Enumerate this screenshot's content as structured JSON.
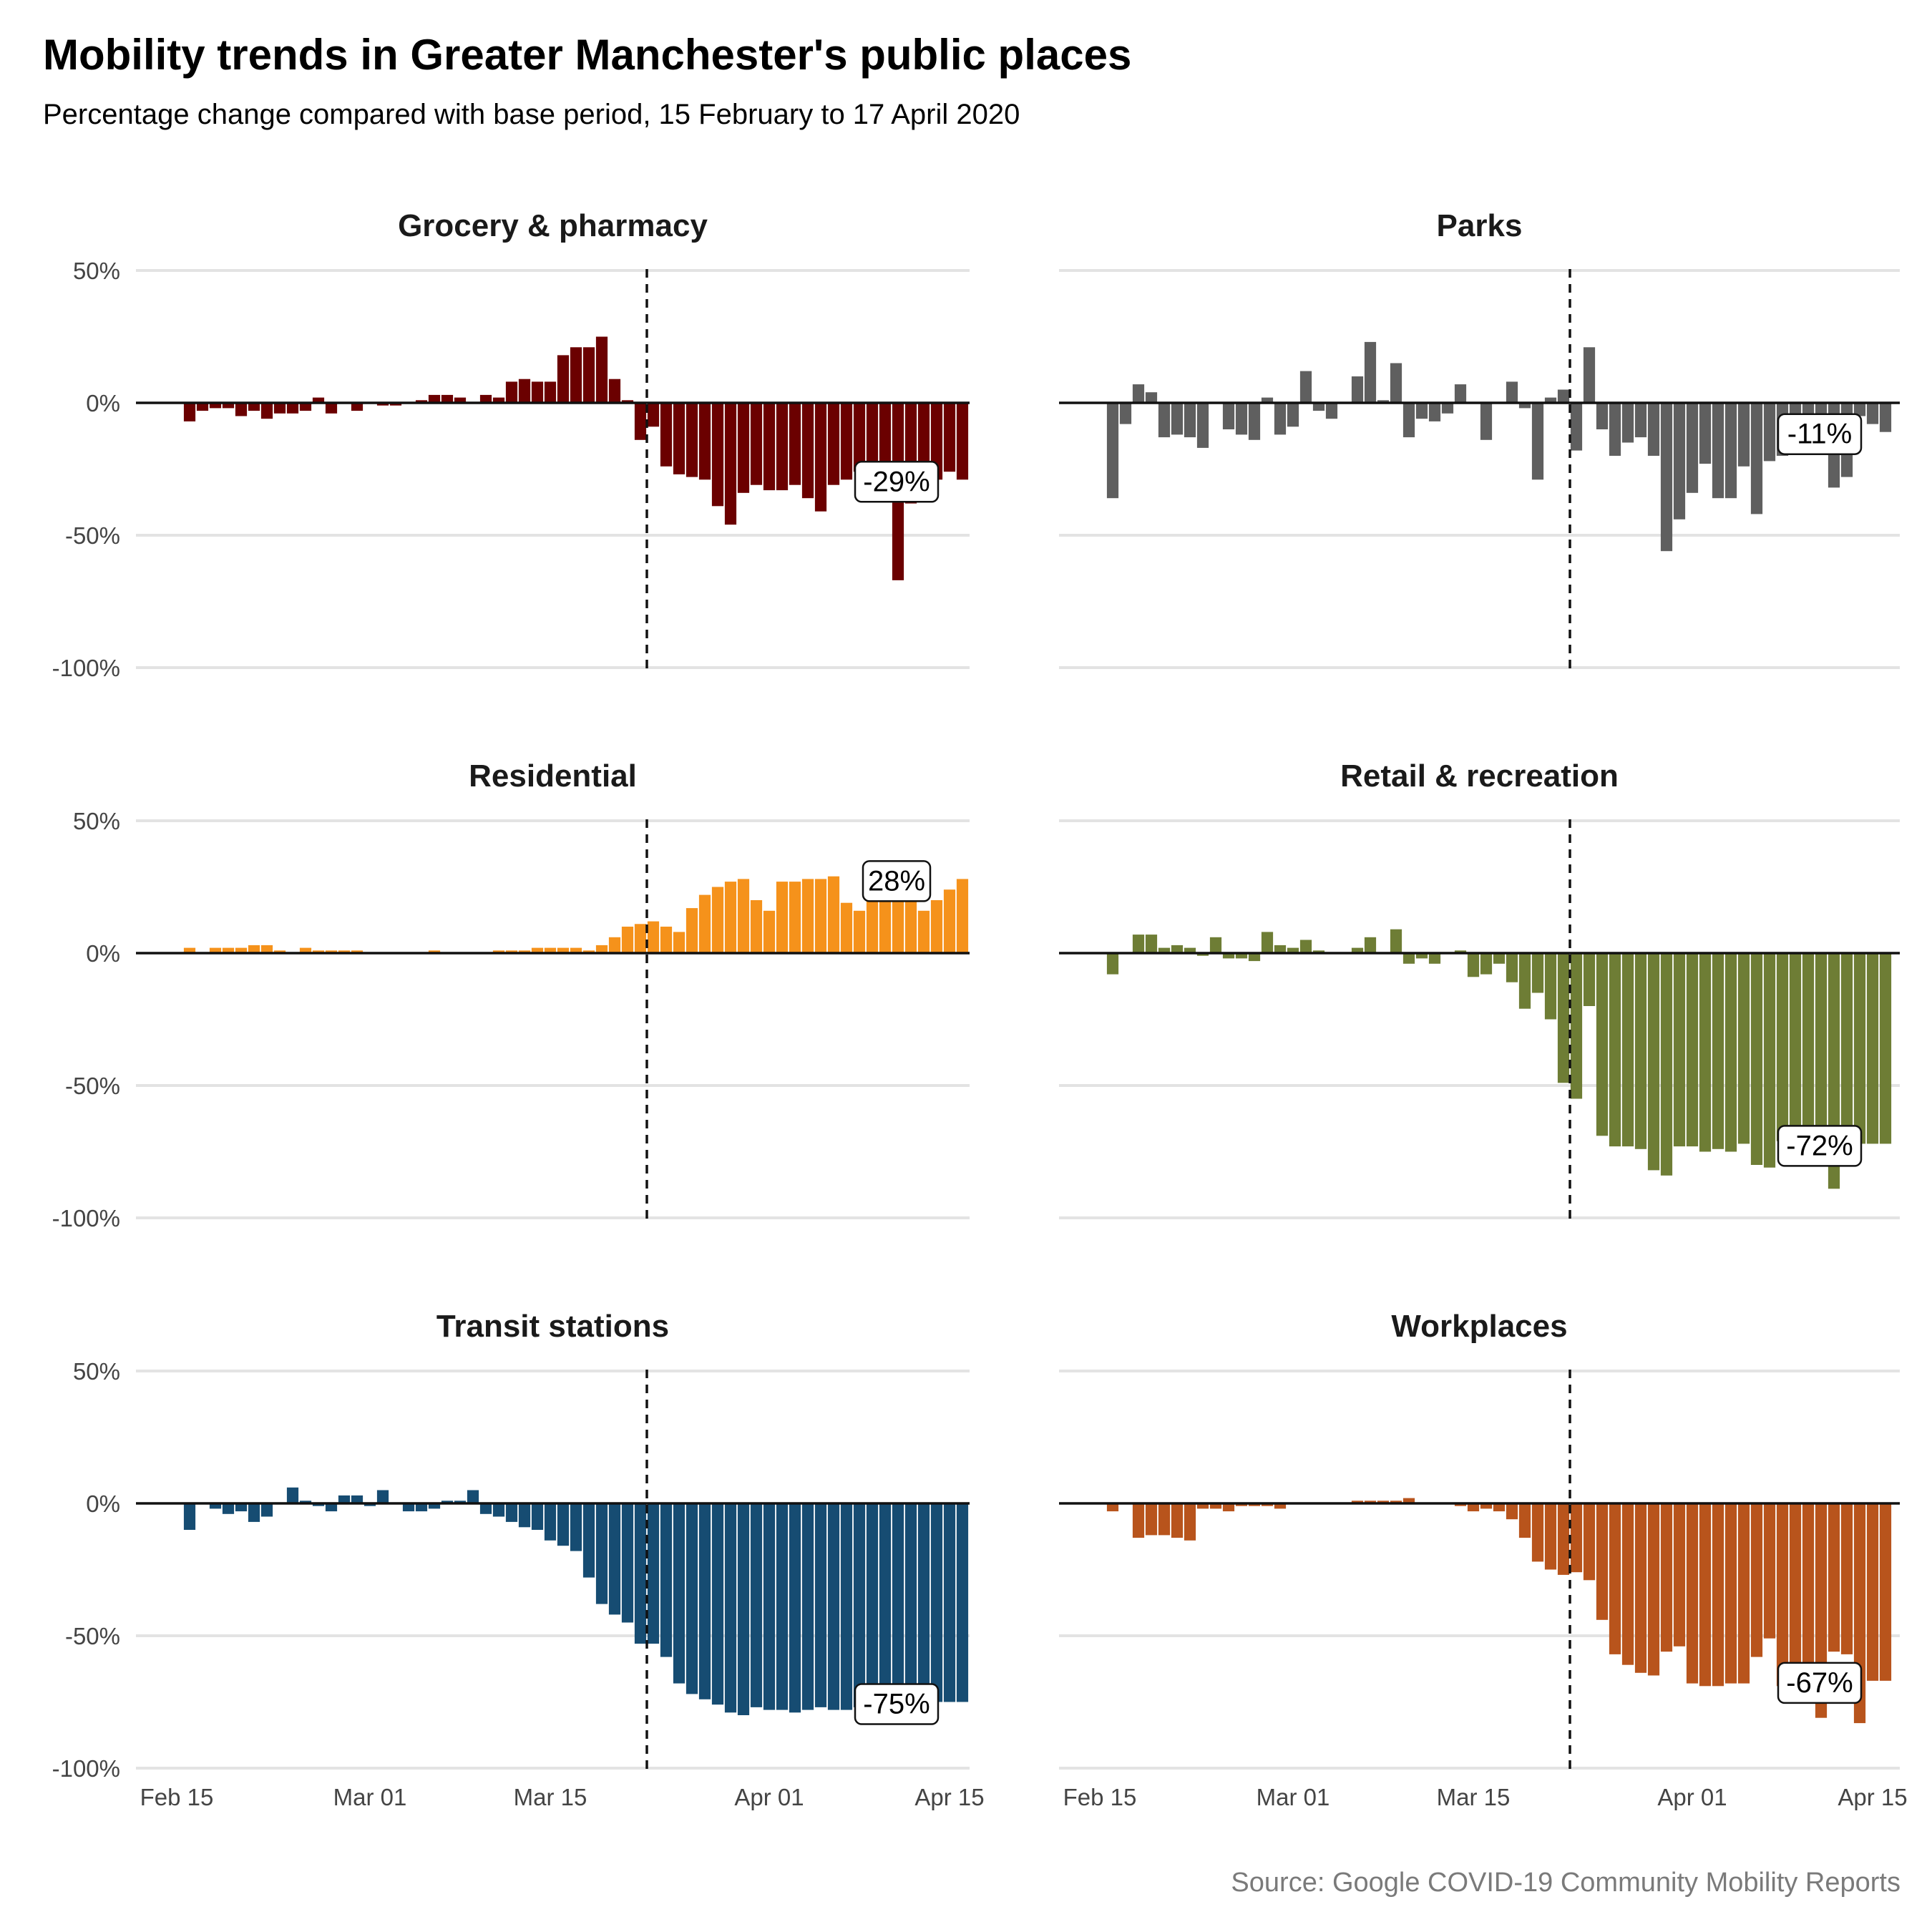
{
  "header": {
    "title": "Mobility trends in Greater Manchester's public places",
    "subtitle": "Percentage change compared with base period, 15 February to 17 April 2020",
    "caption": "Source: Google COVID-19 Community Mobility Reports"
  },
  "chart_data": [
    {
      "type": "bar",
      "title": "Grocery & pharmacy",
      "color": "#6b0000",
      "x_start": "2020-02-15",
      "x_end": "2020-04-17",
      "x_ticks": [
        "Feb 15",
        "Mar 01",
        "Mar 15",
        "Apr 01",
        "Apr 15"
      ],
      "y_ticks": [
        "50%",
        "0%",
        "-50%",
        "-100%"
      ],
      "ylim": [
        -100,
        50
      ],
      "vline_date": "2020-03-23",
      "values": [
        0,
        -7,
        -3,
        -2,
        -2,
        -5,
        -3,
        -6,
        -4,
        -4,
        -3,
        2,
        -4,
        0,
        -3,
        0,
        -1,
        -1,
        0,
        1,
        3,
        3,
        2,
        0,
        3,
        2,
        8,
        9,
        8,
        8,
        18,
        21,
        21,
        25,
        9,
        1,
        -14,
        -9,
        -24,
        -27,
        -28,
        -29,
        -39,
        -46,
        -34,
        -31,
        -33,
        -33,
        -31,
        -36,
        -41,
        -31,
        -29,
        -26,
        -30,
        -29,
        -67,
        -38,
        -30,
        -29,
        -26,
        -29
      ],
      "end_label": "-29%"
    },
    {
      "type": "bar",
      "title": "Parks",
      "color": "#5f5f5f",
      "x_start": "2020-02-15",
      "x_end": "2020-04-17",
      "x_ticks": [
        "Feb 15",
        "Mar 01",
        "Mar 15",
        "Apr 01",
        "Apr 15"
      ],
      "y_ticks": [
        "50%",
        "0%",
        "-50%",
        "-100%"
      ],
      "ylim": [
        -100,
        50
      ],
      "vline_date": "2020-03-23",
      "values": [
        0,
        -36,
        -8,
        7,
        4,
        -13,
        -12,
        -13,
        -17,
        0,
        -10,
        -12,
        -14,
        2,
        -12,
        -9,
        12,
        -3,
        -6,
        0,
        10,
        23,
        1,
        15,
        -13,
        -6,
        -7,
        -4,
        7,
        0,
        -14,
        0,
        8,
        -2,
        -29,
        2,
        5,
        -18,
        21,
        -10,
        -20,
        -15,
        -13,
        -20,
        -56,
        -44,
        -34,
        -23,
        -36,
        -36,
        -24,
        -42,
        -22,
        -20,
        -8,
        -6,
        -11,
        -32,
        -28,
        -5,
        -8,
        -11
      ],
      "end_label": "-11%"
    },
    {
      "type": "bar",
      "title": "Residential",
      "color": "#f5921b",
      "x_start": "2020-02-15",
      "x_end": "2020-04-17",
      "x_ticks": [
        "Feb 15",
        "Mar 01",
        "Mar 15",
        "Apr 01",
        "Apr 15"
      ],
      "y_ticks": [
        "50%",
        "0%",
        "-50%",
        "-100%"
      ],
      "ylim": [
        -100,
        50
      ],
      "vline_date": "2020-03-23",
      "values": [
        0,
        2,
        0,
        2,
        2,
        2,
        3,
        3,
        1,
        0,
        2,
        1,
        1,
        1,
        1,
        0,
        0,
        0,
        0,
        0,
        1,
        0,
        0,
        0,
        0,
        1,
        1,
        1,
        2,
        2,
        2,
        2,
        1,
        3,
        6,
        10,
        11,
        12,
        10,
        8,
        17,
        22,
        25,
        27,
        28,
        20,
        16,
        27,
        27,
        28,
        28,
        29,
        19,
        16,
        26,
        26,
        27,
        26,
        16,
        20,
        24,
        28
      ],
      "end_label": "28%"
    },
    {
      "type": "bar",
      "title": "Retail & recreation",
      "color": "#6e7d35",
      "x_start": "2020-02-15",
      "x_end": "2020-04-17",
      "x_ticks": [
        "Feb 15",
        "Mar 01",
        "Mar 15",
        "Apr 01",
        "Apr 15"
      ],
      "y_ticks": [
        "50%",
        "0%",
        "-50%",
        "-100%"
      ],
      "ylim": [
        -100,
        50
      ],
      "vline_date": "2020-03-23",
      "values": [
        0,
        -8,
        0,
        7,
        7,
        2,
        3,
        2,
        -1,
        6,
        -2,
        -2,
        -3,
        8,
        3,
        2,
        5,
        1,
        0,
        0,
        2,
        6,
        0,
        9,
        -4,
        -2,
        -4,
        0,
        1,
        -9,
        -8,
        -4,
        -11,
        -21,
        -15,
        -25,
        -49,
        -55,
        -20,
        -69,
        -73,
        -73,
        -74,
        -82,
        -84,
        -73,
        -73,
        -75,
        -74,
        -75,
        -72,
        -80,
        -81,
        -71,
        -71,
        -72,
        -72,
        -89,
        -72,
        -72,
        -72,
        -72
      ],
      "end_label": "-72%"
    },
    {
      "type": "bar",
      "title": "Transit stations",
      "color": "#164c72",
      "x_start": "2020-02-15",
      "x_end": "2020-04-17",
      "x_ticks": [
        "Feb 15",
        "Mar 01",
        "Mar 15",
        "Apr 01",
        "Apr 15"
      ],
      "y_ticks": [
        "50%",
        "0%",
        "-50%",
        "-100%"
      ],
      "ylim": [
        -100,
        50
      ],
      "vline_date": "2020-03-23",
      "values": [
        0,
        -10,
        0,
        -2,
        -4,
        -3,
        -7,
        -5,
        0,
        6,
        1,
        -1,
        -3,
        3,
        3,
        -1,
        5,
        0,
        -3,
        -3,
        -2,
        1,
        1,
        5,
        -4,
        -5,
        -7,
        -9,
        -10,
        -14,
        -16,
        -18,
        -28,
        -38,
        -42,
        -45,
        -53,
        -53,
        -58,
        -68,
        -72,
        -74,
        -76,
        -79,
        -80,
        -77,
        -78,
        -78,
        -79,
        -78,
        -77,
        -78,
        -78,
        -77,
        -75,
        -75,
        -74,
        -73,
        -72,
        -75,
        -75,
        -75
      ],
      "end_label": "-75%"
    },
    {
      "type": "bar",
      "title": "Workplaces",
      "color": "#b8541c",
      "x_start": "2020-02-15",
      "x_end": "2020-04-17",
      "x_ticks": [
        "Feb 15",
        "Mar 01",
        "Mar 15",
        "Apr 01",
        "Apr 15"
      ],
      "y_ticks": [
        "50%",
        "0%",
        "-50%",
        "-100%"
      ],
      "ylim": [
        -100,
        50
      ],
      "vline_date": "2020-03-23",
      "values": [
        0,
        -3,
        0,
        -13,
        -12,
        -12,
        -13,
        -14,
        -2,
        -2,
        -3,
        -1,
        -1,
        -1,
        -2,
        0,
        0,
        0,
        0,
        0,
        1,
        1,
        1,
        1,
        2,
        0,
        0,
        0,
        -1,
        -3,
        -2,
        -3,
        -6,
        -13,
        -22,
        -25,
        -27,
        -26,
        -29,
        -44,
        -57,
        -61,
        -64,
        -65,
        -56,
        -54,
        -68,
        -69,
        -69,
        -68,
        -68,
        -58,
        -51,
        -69,
        -69,
        -68,
        -81,
        -56,
        -57,
        -83,
        -67,
        -67
      ],
      "end_label": "-67%"
    }
  ]
}
